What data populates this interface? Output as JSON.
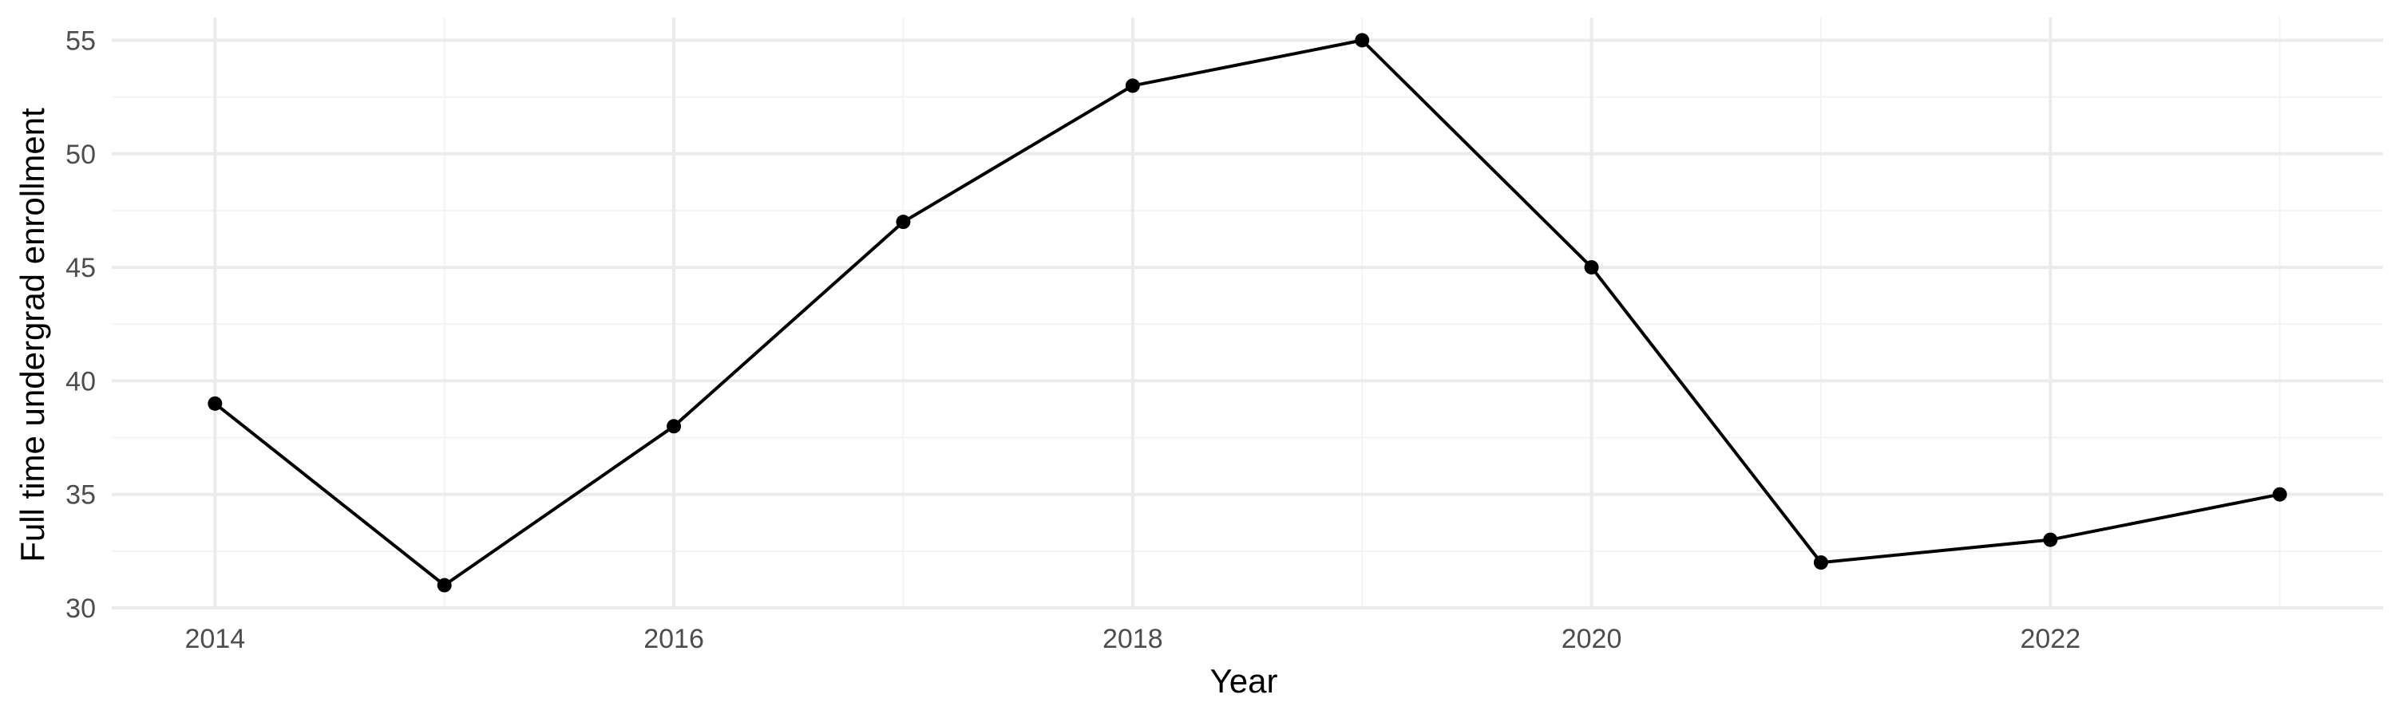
{
  "chart_data": {
    "type": "line",
    "title": "",
    "xlabel": "Year",
    "ylabel": "Full time undergrad enrollment",
    "x": [
      2014,
      2015,
      2016,
      2017,
      2018,
      2019,
      2020,
      2021,
      2022,
      2023
    ],
    "series": [
      {
        "values": [
          39,
          31,
          38,
          47,
          53,
          55,
          45,
          32,
          33,
          35
        ],
        "color": "#000000"
      }
    ],
    "xlim": [
      2013.55,
      2023.45
    ],
    "ylim": [
      30,
      56
    ],
    "xticks": [
      2014,
      2016,
      2018,
      2020,
      2022
    ],
    "xtick_labels": [
      "2014",
      "2016",
      "2018",
      "2020",
      "2022"
    ],
    "yticks": [
      30,
      35,
      40,
      45,
      50,
      55
    ],
    "ytick_labels": [
      "30",
      "35",
      "40",
      "45",
      "50",
      "55"
    ],
    "grid": true,
    "legend": "none",
    "markers": true
  }
}
